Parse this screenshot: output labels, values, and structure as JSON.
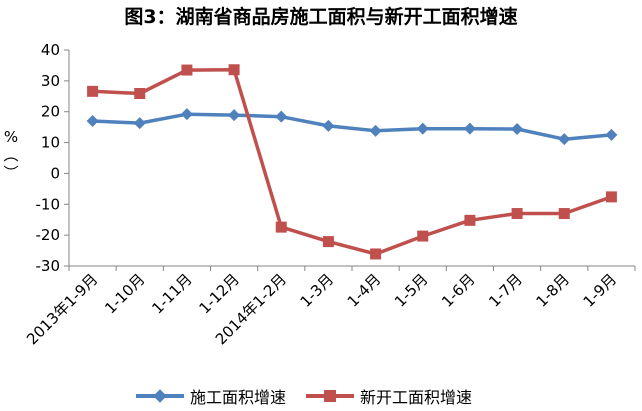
{
  "chart_data": {
    "type": "line",
    "title": "图3：湖南省商品房施工面积与新开工面积增速",
    "ylabel": "%",
    "ylabel_chars": [
      "%",
      "︵",
      "︶"
    ],
    "xlabel": "",
    "ylim": [
      -30,
      40
    ],
    "yticks": [
      40,
      30,
      20,
      10,
      0,
      -10,
      -20,
      -30
    ],
    "categories": [
      "2013年1-9月",
      "1-10月",
      "1-11月",
      "1-12月",
      "2014年1-2月",
      "1-3月",
      "1-4月",
      "1-5月",
      "1-6月",
      "1-7月",
      "1-8月",
      "1-9月"
    ],
    "series": [
      {
        "name": "施工面积增速",
        "color": "#4F81BD",
        "marker": "diamond",
        "values": [
          17.0,
          16.3,
          19.2,
          18.9,
          18.4,
          15.4,
          13.8,
          14.5,
          14.5,
          14.4,
          11.1,
          12.5
        ]
      },
      {
        "name": "新开工面积增速",
        "color": "#C0504D",
        "marker": "square",
        "values": [
          26.6,
          25.9,
          33.5,
          33.6,
          -17.4,
          -22.1,
          -26.1,
          -20.3,
          -15.2,
          -13.0,
          -13.0,
          -7.6
        ]
      }
    ],
    "grid": false,
    "legend_position": "bottom"
  }
}
